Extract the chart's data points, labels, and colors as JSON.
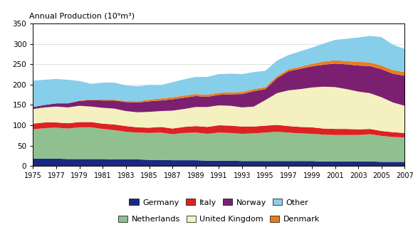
{
  "years": [
    1975,
    1976,
    1977,
    1978,
    1979,
    1980,
    1981,
    1982,
    1983,
    1984,
    1985,
    1986,
    1987,
    1988,
    1989,
    1990,
    1991,
    1992,
    1993,
    1994,
    1995,
    1996,
    1997,
    1998,
    1999,
    2000,
    2001,
    2002,
    2003,
    2004,
    2005,
    2006,
    2007
  ],
  "germany": [
    18,
    18,
    18,
    17,
    17,
    17,
    17,
    16,
    16,
    16,
    15,
    15,
    14,
    14,
    14,
    13,
    13,
    13,
    12,
    12,
    12,
    12,
    12,
    12,
    12,
    11,
    11,
    11,
    11,
    11,
    10,
    10,
    10
  ],
  "netherlands": [
    72,
    75,
    76,
    75,
    78,
    78,
    74,
    72,
    68,
    66,
    66,
    67,
    64,
    67,
    68,
    66,
    69,
    68,
    67,
    68,
    70,
    72,
    70,
    68,
    67,
    66,
    65,
    65,
    65,
    67,
    64,
    61,
    60
  ],
  "italy": [
    14,
    14,
    13,
    13,
    13,
    13,
    13,
    14,
    14,
    13,
    13,
    14,
    14,
    15,
    16,
    17,
    18,
    18,
    18,
    17,
    17,
    17,
    16,
    16,
    16,
    15,
    15,
    15,
    14,
    13,
    12,
    12,
    11
  ],
  "uk": [
    36,
    37,
    39,
    39,
    40,
    38,
    39,
    39,
    37,
    37,
    39,
    39,
    44,
    44,
    47,
    49,
    49,
    49,
    47,
    49,
    63,
    78,
    88,
    93,
    98,
    103,
    103,
    98,
    93,
    88,
    83,
    73,
    67
  ],
  "norway": [
    5,
    6,
    8,
    10,
    12,
    16,
    18,
    20,
    22,
    24,
    26,
    26,
    28,
    28,
    27,
    25,
    26,
    28,
    33,
    38,
    27,
    37,
    47,
    50,
    52,
    54,
    58,
    61,
    64,
    67,
    69,
    71,
    74
  ],
  "denmark": [
    0,
    0,
    0,
    0,
    1,
    2,
    2,
    2,
    3,
    3,
    4,
    5,
    5,
    5,
    5,
    5,
    5,
    5,
    5,
    5,
    5,
    5,
    5,
    5,
    6,
    8,
    8,
    8,
    9,
    9,
    9,
    9,
    9
  ],
  "other": [
    65,
    62,
    60,
    58,
    48,
    38,
    42,
    42,
    38,
    37,
    36,
    33,
    37,
    40,
    42,
    44,
    46,
    46,
    44,
    42,
    40,
    38,
    35,
    38,
    40,
    44,
    50,
    55,
    60,
    65,
    70,
    62,
    57
  ],
  "colors": {
    "germany": "#1c2980",
    "netherlands": "#90c090",
    "italy": "#dd2222",
    "uk": "#f5f0c0",
    "norway": "#7b2070",
    "denmark": "#e87d1e",
    "other": "#87ceeb"
  },
  "ylabel": "Annual Production (10⁹m³)",
  "ylim": [
    0,
    350
  ],
  "yticks": [
    0,
    50,
    100,
    150,
    200,
    250,
    300,
    350
  ],
  "xticks": [
    1975,
    1977,
    1979,
    1981,
    1983,
    1985,
    1987,
    1989,
    1991,
    1993,
    1995,
    1997,
    1999,
    2001,
    2003,
    2005,
    2007
  ],
  "xlim": [
    1975,
    2007
  ]
}
